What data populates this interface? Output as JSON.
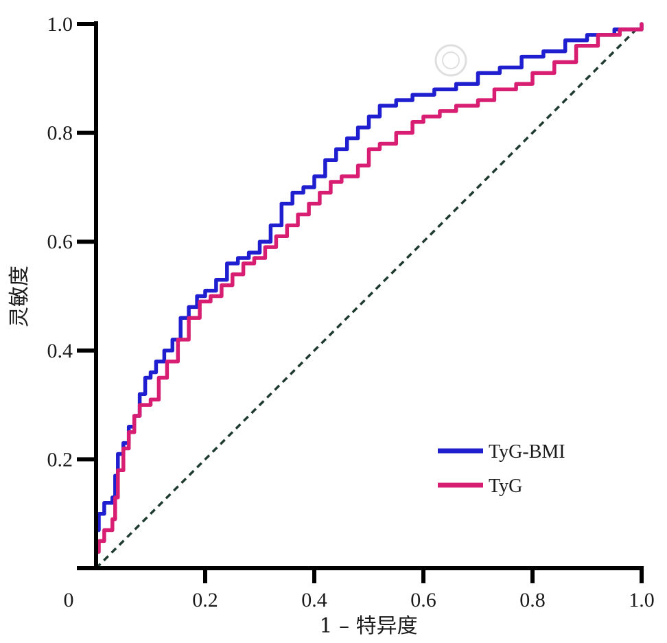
{
  "chart_data": {
    "type": "line",
    "xlabel": "1 – 特异度",
    "ylabel": "灵敏度",
    "xlim": [
      0,
      1.0
    ],
    "ylim": [
      0,
      1.0
    ],
    "x_ticks": [
      "0",
      "0.2",
      "0.4",
      "0.6",
      "0.8",
      "1.0"
    ],
    "y_ticks": [
      "0.2",
      "0.4",
      "0.6",
      "0.8",
      "1.0"
    ],
    "grid": false,
    "legend_position": "bottom-right",
    "reference_line": {
      "style": "dashed",
      "color": "#1f3b30",
      "from": [
        0,
        0
      ],
      "to": [
        1,
        1
      ]
    },
    "series": [
      {
        "name": "TyG-BMI",
        "color": "#1f1fd0",
        "points": [
          [
            0,
            0
          ],
          [
            0,
            0.07
          ],
          [
            0.005,
            0.1
          ],
          [
            0.015,
            0.12
          ],
          [
            0.03,
            0.13
          ],
          [
            0.035,
            0.17
          ],
          [
            0.04,
            0.21
          ],
          [
            0.05,
            0.23
          ],
          [
            0.06,
            0.26
          ],
          [
            0.07,
            0.28
          ],
          [
            0.08,
            0.32
          ],
          [
            0.09,
            0.35
          ],
          [
            0.1,
            0.36
          ],
          [
            0.11,
            0.38
          ],
          [
            0.125,
            0.4
          ],
          [
            0.14,
            0.42
          ],
          [
            0.155,
            0.46
          ],
          [
            0.17,
            0.48
          ],
          [
            0.185,
            0.5
          ],
          [
            0.2,
            0.51
          ],
          [
            0.22,
            0.53
          ],
          [
            0.24,
            0.56
          ],
          [
            0.26,
            0.57
          ],
          [
            0.28,
            0.58
          ],
          [
            0.3,
            0.6
          ],
          [
            0.32,
            0.63
          ],
          [
            0.34,
            0.67
          ],
          [
            0.36,
            0.69
          ],
          [
            0.38,
            0.7
          ],
          [
            0.4,
            0.72
          ],
          [
            0.42,
            0.75
          ],
          [
            0.44,
            0.77
          ],
          [
            0.46,
            0.79
          ],
          [
            0.48,
            0.81
          ],
          [
            0.5,
            0.83
          ],
          [
            0.52,
            0.85
          ],
          [
            0.55,
            0.86
          ],
          [
            0.58,
            0.87
          ],
          [
            0.62,
            0.88
          ],
          [
            0.66,
            0.89
          ],
          [
            0.7,
            0.91
          ],
          [
            0.74,
            0.92
          ],
          [
            0.78,
            0.94
          ],
          [
            0.82,
            0.95
          ],
          [
            0.86,
            0.97
          ],
          [
            0.9,
            0.98
          ],
          [
            0.95,
            0.99
          ],
          [
            1.0,
            1.0
          ]
        ]
      },
      {
        "name": "TyG",
        "color": "#d81e72",
        "points": [
          [
            0,
            0
          ],
          [
            0,
            0.03
          ],
          [
            0.005,
            0.05
          ],
          [
            0.015,
            0.07
          ],
          [
            0.03,
            0.09
          ],
          [
            0.035,
            0.13
          ],
          [
            0.04,
            0.18
          ],
          [
            0.05,
            0.22
          ],
          [
            0.06,
            0.25
          ],
          [
            0.07,
            0.28
          ],
          [
            0.08,
            0.3
          ],
          [
            0.1,
            0.31
          ],
          [
            0.115,
            0.35
          ],
          [
            0.13,
            0.38
          ],
          [
            0.15,
            0.42
          ],
          [
            0.17,
            0.46
          ],
          [
            0.19,
            0.49
          ],
          [
            0.21,
            0.5
          ],
          [
            0.23,
            0.52
          ],
          [
            0.25,
            0.54
          ],
          [
            0.27,
            0.56
          ],
          [
            0.29,
            0.57
          ],
          [
            0.31,
            0.59
          ],
          [
            0.33,
            0.61
          ],
          [
            0.35,
            0.63
          ],
          [
            0.37,
            0.65
          ],
          [
            0.39,
            0.67
          ],
          [
            0.41,
            0.69
          ],
          [
            0.43,
            0.71
          ],
          [
            0.45,
            0.72
          ],
          [
            0.48,
            0.74
          ],
          [
            0.5,
            0.77
          ],
          [
            0.52,
            0.78
          ],
          [
            0.55,
            0.8
          ],
          [
            0.58,
            0.82
          ],
          [
            0.6,
            0.83
          ],
          [
            0.63,
            0.84
          ],
          [
            0.66,
            0.85
          ],
          [
            0.7,
            0.86
          ],
          [
            0.73,
            0.88
          ],
          [
            0.77,
            0.89
          ],
          [
            0.8,
            0.91
          ],
          [
            0.84,
            0.93
          ],
          [
            0.88,
            0.96
          ],
          [
            0.92,
            0.98
          ],
          [
            0.96,
            0.99
          ],
          [
            1.0,
            1.0
          ]
        ]
      }
    ]
  }
}
